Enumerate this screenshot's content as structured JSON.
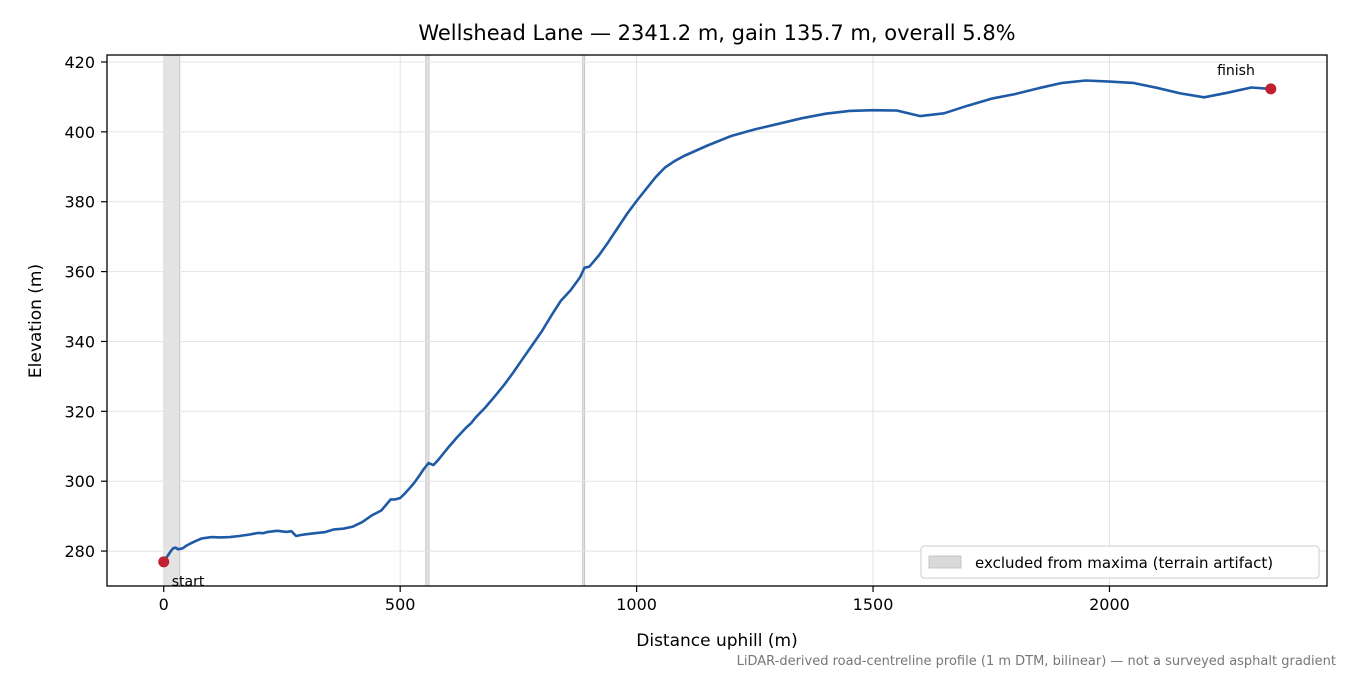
{
  "chart_data": {
    "type": "line",
    "title": "Wellshead Lane — 2341.2 m, gain 135.7 m, overall 5.8%",
    "xlabel": "Distance uphill (m)",
    "ylabel": "Elevation (m)",
    "xlim": [
      -120,
      2460
    ],
    "ylim": [
      270,
      422
    ],
    "xticks": [
      0,
      500,
      1000,
      1500,
      2000
    ],
    "yticks": [
      280,
      300,
      320,
      340,
      360,
      380,
      400,
      420
    ],
    "grid": true,
    "legend_position": "lower right",
    "legend_label": "excluded from maxima (terrain artifact)",
    "line_color": "#1f5aa6",
    "marker_color": "#c0202f",
    "excluded_color": "#d9d9d9",
    "excluded_ranges": [
      [
        0,
        34
      ],
      [
        554,
        561
      ],
      [
        886,
        889
      ]
    ],
    "series": [
      {
        "x": [
          0,
          5,
          10,
          15,
          20,
          25,
          30,
          40,
          50,
          60,
          70,
          80,
          90,
          100,
          120,
          140,
          160,
          180,
          200,
          210,
          220,
          240,
          260,
          270,
          280,
          290,
          300,
          320,
          340,
          360,
          380,
          400,
          420,
          440,
          460,
          480,
          490,
          500,
          510,
          520,
          530,
          540,
          550,
          560,
          570,
          580,
          600,
          620,
          640,
          650,
          660,
          680,
          700,
          720,
          740,
          760,
          780,
          800,
          820,
          840,
          860,
          880,
          890,
          900,
          920,
          940,
          960,
          980,
          1000,
          1020,
          1040,
          1060,
          1080,
          1100,
          1150,
          1200,
          1250,
          1300,
          1350,
          1400,
          1450,
          1500,
          1550,
          1600,
          1650,
          1700,
          1750,
          1800,
          1850,
          1900,
          1950,
          2000,
          2050,
          2100,
          2150,
          2200,
          2250,
          2300,
          2341.2
        ],
        "y": [
          276.9,
          278,
          279,
          280,
          280.8,
          281,
          280.5,
          280.8,
          281.7,
          282.4,
          283,
          283.6,
          283.8,
          284,
          283.9,
          284,
          284.3,
          284.7,
          285.2,
          285.1,
          285.5,
          285.8,
          285.5,
          285.7,
          284.3,
          284.6,
          284.8,
          285.1,
          285.4,
          286.2,
          286.4,
          287,
          288.3,
          290.2,
          291.6,
          294.8,
          294.8,
          295.2,
          296.5,
          298,
          299.6,
          301.5,
          303.5,
          305.2,
          304.6,
          306,
          309.4,
          312.5,
          315.4,
          316.6,
          318.3,
          321.1,
          324.3,
          327.6,
          331.3,
          335.2,
          339.1,
          343,
          347.5,
          351.7,
          354.6,
          358.3,
          361.1,
          361.4,
          364.6,
          368.4,
          372.5,
          376.6,
          380.2,
          383.6,
          387,
          389.8,
          391.6,
          393.1,
          396.1,
          398.8,
          400.7,
          402.3,
          403.9,
          405.2,
          406,
          406.2,
          406.1,
          404.5,
          405.3,
          407.5,
          409.5,
          410.8,
          412.5,
          414,
          414.7,
          414.4,
          414,
          412.6,
          411,
          409.9,
          411.2,
          412.7,
          412.3
        ]
      }
    ],
    "markers": [
      {
        "label": "start",
        "x": 0,
        "y": 276.9
      },
      {
        "label": "finish",
        "x": 2341.2,
        "y": 412.3
      }
    ],
    "footnote": "LiDAR-derived road-centreline profile (1 m DTM, bilinear) — not a surveyed asphalt gradient"
  }
}
